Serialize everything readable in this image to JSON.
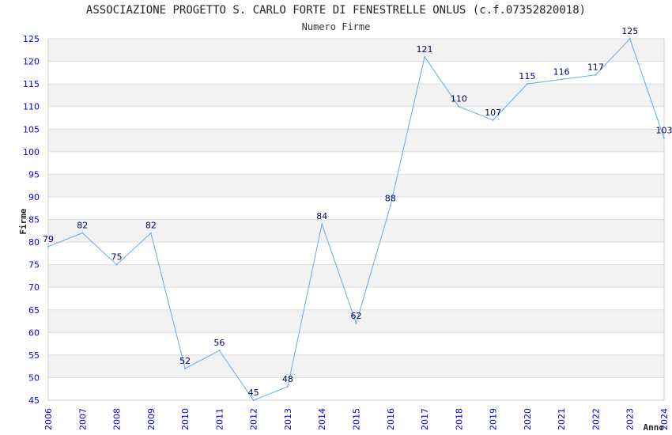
{
  "chart_data": {
    "type": "line",
    "title": "ASSOCIAZIONE PROGETTO S. CARLO FORTE DI FENESTRELLE ONLUS (c.f.07352820018)",
    "subtitle": "Numero Firme",
    "xlabel": "Anno",
    "ylabel": "Firme",
    "ylim": [
      45,
      125
    ],
    "yticks": [
      45,
      50,
      55,
      60,
      65,
      70,
      75,
      80,
      85,
      90,
      95,
      100,
      105,
      110,
      115,
      120,
      125
    ],
    "x": [
      "2006",
      "2007",
      "2008",
      "2009",
      "2010",
      "2011",
      "2012",
      "2013",
      "2014",
      "2015",
      "2016",
      "2017",
      "2018",
      "2019",
      "2020",
      "2021",
      "2022",
      "2023",
      "2024"
    ],
    "series": [
      {
        "name": "Numero Firme",
        "values": [
          79,
          82,
          75,
          82,
          52,
          56,
          45,
          48,
          84,
          62,
          88,
          121,
          110,
          107,
          115,
          116,
          117,
          125,
          103
        ]
      }
    ],
    "grid": true,
    "line_color": "#66aaee",
    "band_color": "#f2f2f2"
  }
}
